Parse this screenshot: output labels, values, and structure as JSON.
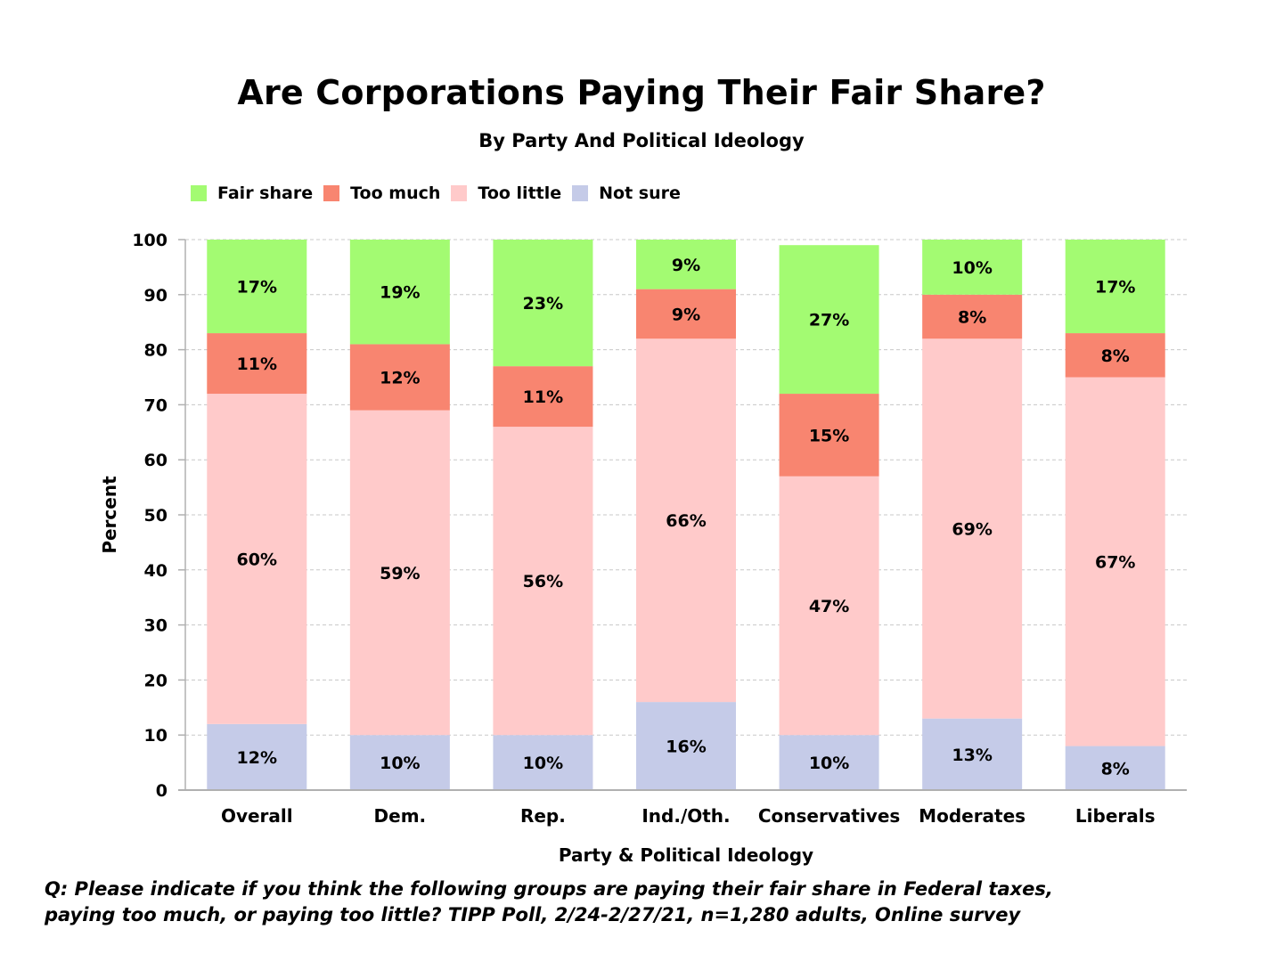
{
  "chart_data": {
    "type": "bar",
    "stacked": true,
    "title": "Are Corporations Paying Their Fair Share?",
    "subtitle": "By Party And Political Ideology",
    "xlabel": "Party & Political Ideology",
    "ylabel": "Percent",
    "ylim": [
      0,
      100
    ],
    "yticks": [
      0,
      10,
      20,
      30,
      40,
      50,
      60,
      70,
      80,
      90,
      100
    ],
    "grid": true,
    "legend_position": "top-left",
    "categories": [
      "Overall",
      "Dem.",
      "Rep.",
      "Ind./Oth.",
      "Conservatives",
      "Moderates",
      "Liberals"
    ],
    "series": [
      {
        "name": "Not sure",
        "color": "#c5cbe8",
        "values": [
          12,
          10,
          10,
          16,
          10,
          13,
          8
        ]
      },
      {
        "name": "Too little",
        "color": "#ffcaca",
        "values": [
          60,
          59,
          56,
          66,
          47,
          69,
          67
        ]
      },
      {
        "name": "Too much",
        "color": "#f88570",
        "values": [
          11,
          12,
          11,
          9,
          15,
          8,
          8
        ]
      },
      {
        "name": "Fair share",
        "color": "#a3fb72",
        "values": [
          17,
          19,
          23,
          9,
          27,
          10,
          17
        ]
      }
    ],
    "legend_order": [
      "Fair share",
      "Too much",
      "Too little",
      "Not sure"
    ],
    "value_suffix": "%"
  },
  "footnote": {
    "line1": "Q:  Please indicate if you think the following groups are paying their fair share in Federal taxes,",
    "line2": "paying too much, or paying too little?  TIPP Poll, 2/24-2/27/21, n=1,280 adults, Online survey"
  },
  "colors": {
    "grid": "#c8c8c8",
    "axis": "#b0b0b0"
  }
}
